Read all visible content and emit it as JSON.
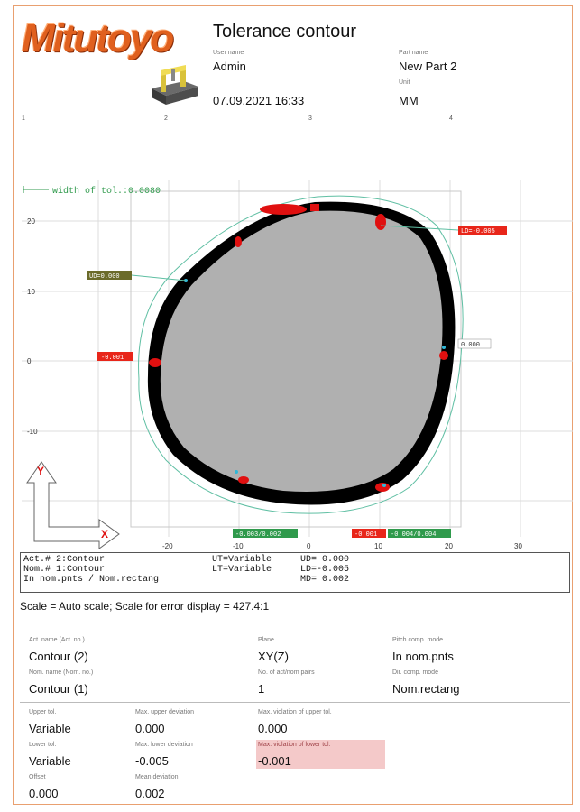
{
  "header": {
    "logo_text": "Mitutoyo",
    "title": "Tolerance contour",
    "user_name_label": "User name",
    "user_name": "Admin",
    "part_name_label": "Part name",
    "part_name": "New Part 2",
    "unit_label": "Unit",
    "unit": "MM",
    "datetime": "07.09.2021 16:33",
    "ruler": [
      "1",
      "2",
      "3",
      "4"
    ]
  },
  "plot": {
    "width_of_tol": "width of tol.:0.0080",
    "x_ticks": [
      "-20",
      "-10",
      "0",
      "10",
      "20",
      "30"
    ],
    "y_ticks": [
      "20",
      "10",
      "0",
      "-10"
    ],
    "tags": {
      "ud": "UD=0.000",
      "ld": "LD=-0.005",
      "left": "-0.001",
      "right": "0.000",
      "bottom_1": "-0.003/0.002",
      "bottom_2": "-0.001",
      "bottom_3": "-0.004/0.004"
    },
    "axis_x": "X",
    "axis_y": "Y",
    "colors": {
      "deviation": "#000000",
      "nominal": "#b0b0b0",
      "tolerance": "#5fbfa3",
      "violation": "#e01010",
      "label_red": "#e8261a",
      "label_green": "#2f9a4c",
      "label_olive": "#6b6b2a"
    }
  },
  "info": {
    "row1_a": "Act.# 2:Contour",
    "row1_b": "UT=Variable",
    "row1_c": "UD= 0.000",
    "row2_a": "Nom.# 1:Contour",
    "row2_b": "LT=Variable",
    "row2_c": "LD=-0.005",
    "row3_a": "In nom.pnts / Nom.rectang",
    "row3_c": "MD= 0.002"
  },
  "scale_line": "Scale = Auto scale;  Scale for error display = 427.4:1",
  "fields": {
    "act_name_label": "Act. name (Act. no.)",
    "act_name": "Contour (2)",
    "plane_label": "Plane",
    "plane": "XY(Z)",
    "pitch_label": "Pitch comp. mode",
    "pitch": "In nom.pnts",
    "nom_name_label": "Nom. name (Nom. no.)",
    "nom_name": "Contour (1)",
    "pairs_label": "No. of act/nom pairs",
    "pairs": "1",
    "dir_label": "Dir. comp. mode",
    "dir": "Nom.rectang",
    "upper_tol_label": "Upper tol.",
    "upper_tol": "Variable",
    "max_upper_label": "Max. upper deviation",
    "max_upper": "0.000",
    "viol_upper_label": "Max. violation of upper tol.",
    "viol_upper": "0.000",
    "lower_tol_label": "Lower tol.",
    "lower_tol": "Variable",
    "max_lower_label": "Max. lower deviation",
    "max_lower": "-0.005",
    "viol_lower_label": "Max. violation of lower tol.",
    "viol_lower": "-0.001",
    "offset_label": "Offset",
    "offset": "0.000",
    "mean_label": "Mean deviation",
    "mean": "0.002"
  }
}
